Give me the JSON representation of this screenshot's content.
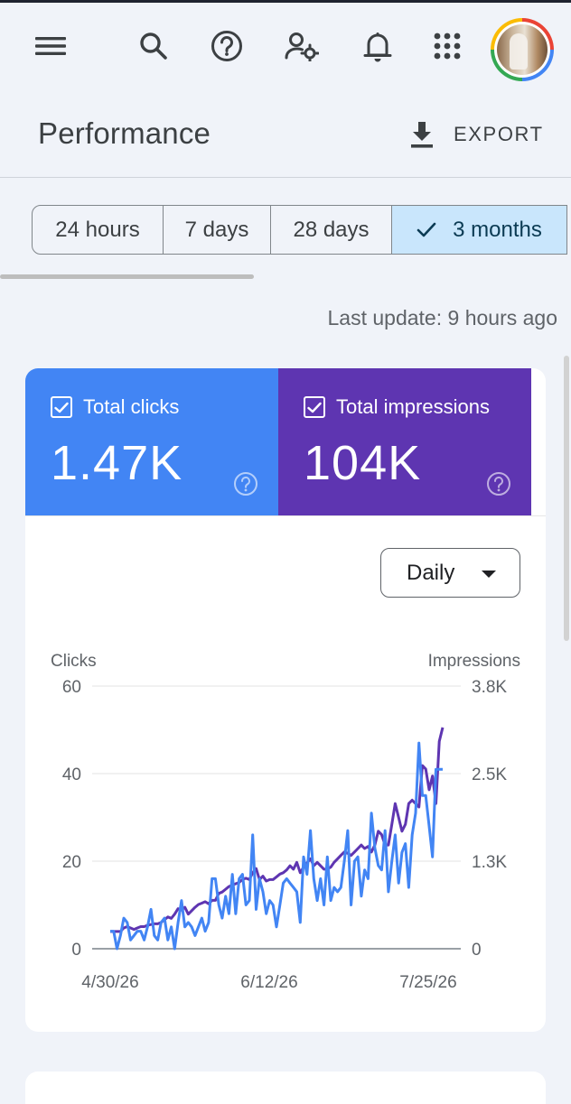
{
  "appbar": {
    "icons": [
      "menu-icon",
      "search-icon",
      "help-icon",
      "manage-users-icon",
      "notifications-icon",
      "apps-icon"
    ]
  },
  "header": {
    "title": "Performance",
    "export_label": "EXPORT"
  },
  "date_range": {
    "chips": [
      "24 hours",
      "7 days",
      "28 days",
      "3 months"
    ],
    "selected": "3 months"
  },
  "last_update": "Last update: 9 hours ago",
  "metrics": {
    "clicks": {
      "label": "Total clicks",
      "value": "1.47K",
      "checked": true,
      "color": "#4285f4"
    },
    "impressions": {
      "label": "Total impressions",
      "value": "104K",
      "checked": true,
      "color": "#5e35b1"
    }
  },
  "granularity": {
    "selected": "Daily"
  },
  "chart_data": {
    "type": "line",
    "ylabel_left": "Clicks",
    "ylabel_right": "Impressions",
    "left_ticks": [
      "0",
      "20",
      "40",
      "60"
    ],
    "right_ticks": [
      "0",
      "1.3K",
      "2.5K",
      "3.8K"
    ],
    "x_ticks": [
      "4/30/26",
      "6/12/26",
      "7/25/26"
    ],
    "ylim_left": [
      0,
      60
    ],
    "ylim_right": [
      0,
      3800
    ],
    "grid": true,
    "series": [
      {
        "name": "Clicks",
        "color": "#4285f4",
        "values": [
          4,
          4,
          0,
          3,
          7,
          6,
          2,
          3,
          4,
          4,
          2,
          5,
          9,
          3,
          2,
          6,
          7,
          2,
          5,
          0,
          6,
          11,
          5,
          6,
          5,
          3,
          5,
          7,
          4,
          6,
          16,
          16,
          10,
          7,
          12,
          8,
          17,
          8,
          16,
          17,
          10,
          11,
          26,
          9,
          16,
          13,
          8,
          11,
          10,
          5,
          10,
          15,
          16,
          15,
          14,
          13,
          6,
          21,
          17,
          27,
          16,
          11,
          16,
          10,
          21,
          11,
          14,
          13,
          14,
          20,
          27,
          10,
          20,
          21,
          12,
          18,
          16,
          31,
          23,
          19,
          18,
          27,
          13,
          20,
          26,
          15,
          22,
          24,
          14,
          26,
          31,
          47,
          35,
          35,
          28,
          21,
          41,
          41,
          41
        ]
      },
      {
        "name": "Impressions",
        "color": "#5e35b1",
        "values": [
          250,
          250,
          250,
          250,
          300,
          320,
          300,
          280,
          300,
          320,
          320,
          340,
          350,
          360,
          360,
          380,
          420,
          460,
          440,
          500,
          580,
          560,
          600,
          500,
          550,
          600,
          640,
          660,
          680,
          650,
          700,
          700,
          800,
          820,
          860,
          900,
          920,
          940,
          960,
          1000,
          1020,
          1000,
          1100,
          1160,
          1000,
          1050,
          980,
          1000,
          1000,
          1040,
          1080,
          1100,
          1140,
          1200,
          1150,
          1250,
          1100,
          1180,
          1240,
          1300,
          1200,
          1250,
          1200,
          1150,
          1150,
          1180,
          1250,
          1300,
          1350,
          1400,
          1380,
          1350,
          1400,
          1450,
          1500,
          1450,
          1480,
          1400,
          1500,
          1700,
          1650,
          1500,
          1500,
          1800,
          2100,
          1900,
          1700,
          1800,
          2100,
          2150,
          2100,
          2050,
          2650,
          2600,
          2300,
          2500,
          2100,
          3000,
          3200
        ]
      }
    ]
  }
}
